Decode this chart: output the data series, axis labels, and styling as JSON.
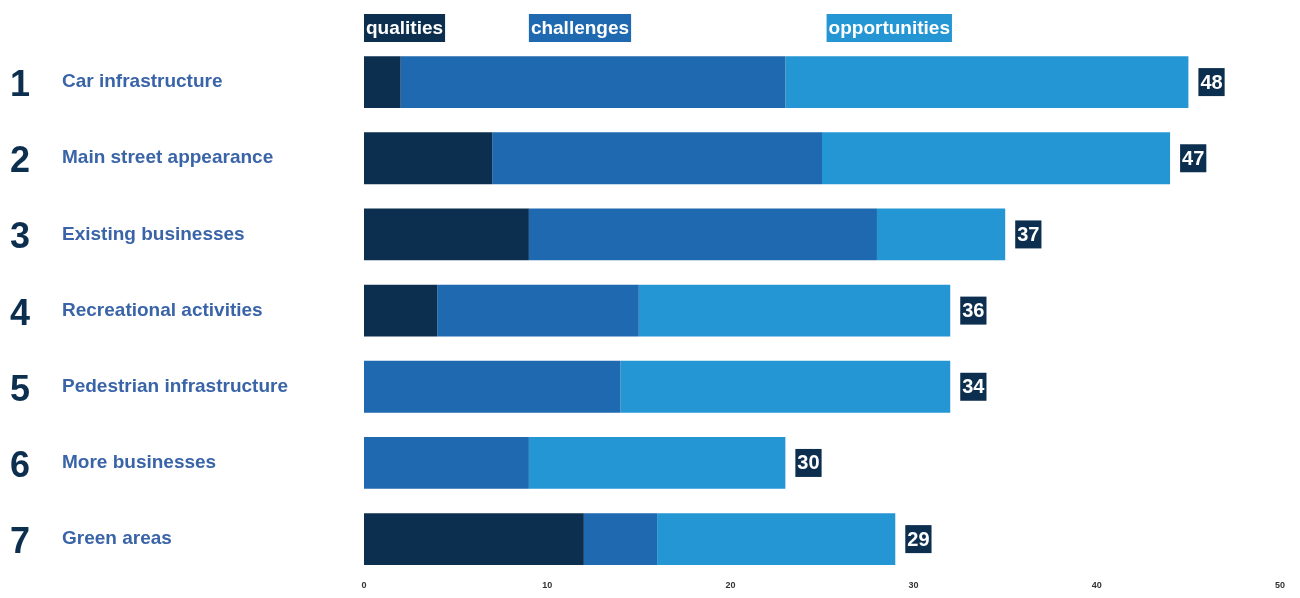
{
  "chart_data": {
    "type": "bar",
    "orientation": "horizontal",
    "stacked": true,
    "categories": [
      "Car infrastructure",
      "Main street appearance",
      "Existing businesses",
      "Recreational activities",
      "Pedestrian infrastructure",
      "More businesses",
      "Green areas"
    ],
    "series": [
      {
        "name": "qualities",
        "color": "#0d2f4f",
        "values": [
          2,
          7,
          9,
          4,
          0,
          0,
          12
        ]
      },
      {
        "name": "challenges",
        "color": "#1f69b0",
        "values": [
          21,
          18,
          19,
          11,
          14,
          9,
          4
        ]
      },
      {
        "name": "opportunities",
        "color": "#2596d4",
        "values": [
          22,
          19,
          7,
          17,
          18,
          14,
          13
        ]
      }
    ],
    "annotations": [
      "1",
      "2",
      "3",
      "4",
      "5",
      "6",
      "7",
      {
        "text": "48",
        "x": 45,
        "y": "Car infrastructure"
      },
      {
        "text": "47",
        "x": 44,
        "y": "Main street appearance"
      },
      {
        "text": "37",
        "x": 35,
        "y": "Existing businesses"
      },
      {
        "text": "36",
        "x": 32,
        "y": "Recreational activities"
      },
      {
        "text": "34",
        "x": 32,
        "y": "Pedestrian infrastructure"
      },
      {
        "text": "30",
        "x": 23,
        "y": "More businesses"
      },
      {
        "text": "29",
        "x": 29,
        "y": "Green areas"
      }
    ],
    "xlim": [
      0,
      50
    ],
    "xticks": [
      0,
      10,
      20,
      30,
      40,
      50
    ],
    "grid": false,
    "legend": "top"
  }
}
